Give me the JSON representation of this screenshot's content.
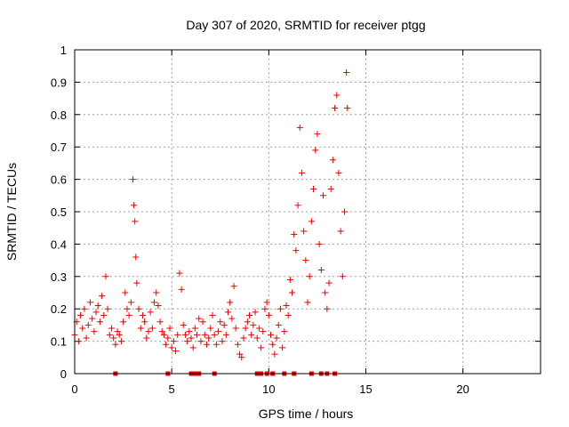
{
  "chart_data": {
    "type": "scatter",
    "title": "Day 307 of 2020, SRMTID for receiver ptgg",
    "xlabel": "GPS time / hours",
    "ylabel": "SRMTID / TECUs",
    "xlim": [
      0,
      24
    ],
    "ylim": [
      0,
      1
    ],
    "xticks": [
      0,
      5,
      10,
      15,
      20
    ],
    "xtick_labels": [
      "0",
      "5",
      "10",
      "15",
      "20"
    ],
    "yticks": [
      0,
      0.1,
      0.2,
      0.3,
      0.4,
      0.5,
      0.6,
      0.7,
      0.8,
      0.9,
      1
    ],
    "ytick_labels": [
      "0",
      "0.1",
      "0.2",
      "0.3",
      "0.4",
      "0.5",
      "0.6",
      "0.7",
      "0.8",
      "0.9",
      "1"
    ],
    "grid": true,
    "marker": "+",
    "color": "#ee0000",
    "series": [
      {
        "name": "SRMTID",
        "x": [
          0.0,
          0.1,
          0.2,
          0.3,
          0.4,
          0.5,
          0.6,
          0.7,
          0.8,
          0.9,
          1.0,
          1.1,
          1.2,
          1.3,
          1.4,
          1.5,
          1.6,
          1.7,
          1.8,
          1.9,
          2.0,
          2.1,
          2.2,
          2.3,
          2.4,
          2.5,
          2.6,
          2.7,
          2.8,
          2.9,
          3.0,
          3.05,
          3.1,
          3.15,
          3.2,
          3.3,
          3.4,
          3.5,
          3.6,
          3.7,
          3.8,
          3.9,
          4.0,
          4.1,
          4.2,
          4.3,
          4.4,
          4.5,
          4.6,
          4.7,
          4.8,
          4.9,
          5.0,
          5.1,
          5.2,
          5.3,
          5.4,
          5.5,
          5.6,
          5.7,
          5.8,
          5.9,
          6.0,
          6.1,
          6.2,
          6.3,
          6.4,
          6.5,
          6.6,
          6.7,
          6.8,
          6.9,
          7.0,
          7.1,
          7.2,
          7.3,
          7.4,
          7.5,
          7.6,
          7.7,
          7.8,
          7.9,
          8.0,
          8.1,
          8.2,
          8.3,
          8.4,
          8.5,
          8.6,
          8.7,
          8.8,
          8.9,
          9.0,
          9.1,
          9.2,
          9.3,
          9.4,
          9.5,
          9.6,
          9.7,
          9.8,
          9.9,
          10.0,
          10.1,
          10.2,
          10.3,
          10.4,
          10.5,
          10.6,
          10.7,
          10.8,
          10.9,
          11.0,
          11.1,
          11.2,
          11.3,
          11.4,
          11.5,
          11.6,
          11.7,
          11.8,
          11.9,
          12.0,
          12.1,
          12.2,
          12.3,
          12.4,
          12.5,
          12.6,
          12.7,
          12.8,
          12.9,
          13.0,
          13.1,
          13.2,
          13.3,
          13.4,
          13.5,
          13.6,
          13.7,
          13.8,
          13.9,
          14.0,
          14.05
        ],
        "y": [
          0.12,
          0.16,
          0.1,
          0.18,
          0.14,
          0.2,
          0.11,
          0.15,
          0.22,
          0.17,
          0.13,
          0.19,
          0.21,
          0.16,
          0.24,
          0.18,
          0.3,
          0.2,
          0.12,
          0.14,
          0.11,
          0.09,
          0.13,
          0.12,
          0.1,
          0.16,
          0.25,
          0.2,
          0.18,
          0.22,
          0.6,
          0.52,
          0.47,
          0.36,
          0.28,
          0.2,
          0.14,
          0.18,
          0.16,
          0.11,
          0.13,
          0.19,
          0.14,
          0.22,
          0.25,
          0.21,
          0.16,
          0.13,
          0.12,
          0.09,
          0.11,
          0.14,
          0.08,
          0.1,
          0.07,
          0.12,
          0.31,
          0.26,
          0.15,
          0.12,
          0.1,
          0.13,
          0.11,
          0.08,
          0.14,
          0.12,
          0.17,
          0.1,
          0.16,
          0.12,
          0.09,
          0.11,
          0.14,
          0.18,
          0.12,
          0.09,
          0.13,
          0.16,
          0.1,
          0.15,
          0.12,
          0.19,
          0.22,
          0.17,
          0.27,
          0.14,
          0.09,
          0.06,
          0.05,
          0.11,
          0.14,
          0.16,
          0.18,
          0.12,
          0.15,
          0.19,
          0.11,
          0.14,
          0.08,
          0.13,
          0.2,
          0.22,
          0.18,
          0.12,
          0.09,
          0.06,
          0.11,
          0.15,
          0.2,
          0.08,
          0.13,
          0.21,
          0.18,
          0.29,
          0.25,
          0.43,
          0.38,
          0.52,
          0.76,
          0.62,
          0.44,
          0.35,
          0.22,
          0.3,
          0.47,
          0.57,
          0.69,
          0.74,
          0.4,
          0.32,
          0.55,
          0.25,
          0.2,
          0.28,
          0.57,
          0.66,
          0.82,
          0.86,
          0.62,
          0.44,
          0.3,
          0.5,
          0.93,
          0.82
        ]
      }
    ],
    "zero_markers_x": [
      2.1,
      4.8,
      6.0,
      6.2,
      6.4,
      7.2,
      9.4,
      9.6,
      9.9,
      10.2,
      10.8,
      11.3,
      12.2,
      12.7,
      13.0,
      13.4
    ]
  }
}
